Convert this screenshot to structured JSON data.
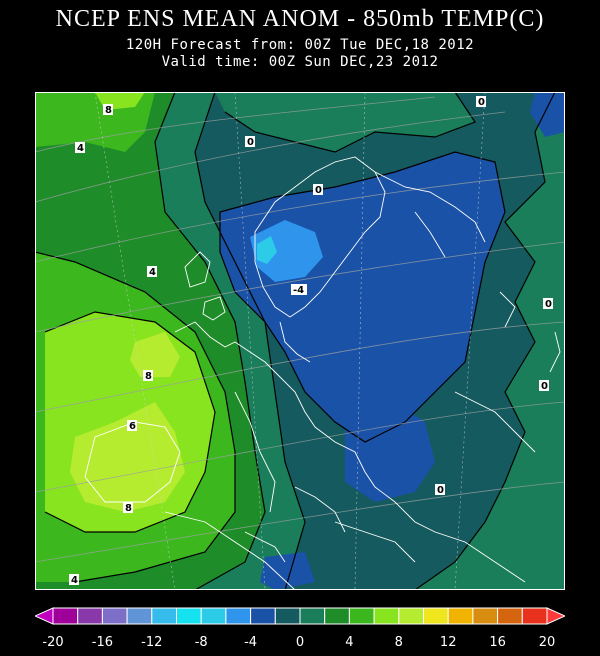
{
  "header": {
    "title": "NCEP ENS MEAN ANOM - 850mb TEMP(C)",
    "forecast": "120H Forecast from: 00Z Tue DEC,18 2012",
    "valid": "Valid time: 00Z Sun DEC,23 2012"
  },
  "map": {
    "contour_labels": [
      "8",
      "4",
      "0",
      "4",
      "8",
      "6",
      "8",
      "-4",
      "0",
      "0",
      "0",
      "0",
      "0",
      "4"
    ]
  },
  "legend": {
    "bins": [
      {
        "color": "#a0009a"
      },
      {
        "color": "#8838a8"
      },
      {
        "color": "#7d6ec8"
      },
      {
        "color": "#5f94d6"
      },
      {
        "color": "#36bcec"
      },
      {
        "color": "#14e2f0"
      },
      {
        "color": "#2ccbe8"
      },
      {
        "color": "#2e94ec"
      },
      {
        "color": "#1a52a8"
      },
      {
        "color": "#155a5e"
      },
      {
        "color": "#1a7e5a"
      },
      {
        "color": "#1e8c28"
      },
      {
        "color": "#3cb81e"
      },
      {
        "color": "#88e41e"
      },
      {
        "color": "#b6ec30"
      },
      {
        "color": "#f0e61e"
      },
      {
        "color": "#f0b400"
      },
      {
        "color": "#d88c10"
      },
      {
        "color": "#d4640e"
      },
      {
        "color": "#e8321e"
      }
    ],
    "left_arrow_color": "#c000c0",
    "right_arrow_color": "#ff3a3a",
    "ticks": [
      "-20",
      "-16",
      "-12",
      "-8",
      "-4",
      "0",
      "4",
      "8",
      "12",
      "16",
      "20"
    ]
  }
}
